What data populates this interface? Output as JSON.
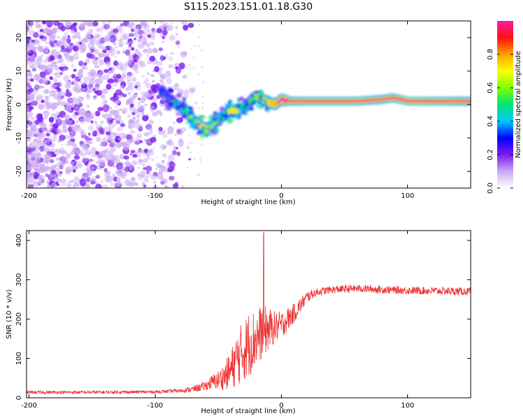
{
  "title": "S115.2023.151.01.18.G30",
  "colors": {
    "snr_line": "#ee3333",
    "spectrum_noise": "#8a2be2",
    "colorbar": [
      "#ffffff",
      "#c9a8f5",
      "#7a1cf0",
      "#0000ff",
      "#00c8ff",
      "#00e676",
      "#7fff00",
      "#ffff00",
      "#ffa000",
      "#ff1010",
      "#ff1aa8"
    ]
  },
  "chart_data": [
    {
      "type": "heatmap",
      "name": "spectrogram",
      "xlabel": "Height of straight line (km)",
      "ylabel": "Frequency (Hz)",
      "xlim": [
        -202,
        150
      ],
      "ylim": [
        -25,
        25
      ],
      "xticks": [
        {
          "value": -200,
          "label": "-200"
        },
        {
          "value": -100,
          "label": "-100"
        },
        {
          "value": 0,
          "label": "0"
        },
        {
          "value": 100,
          "label": "100"
        }
      ],
      "yticks": [
        {
          "value": 20,
          "label": "20"
        },
        {
          "value": 10,
          "label": "10"
        },
        {
          "value": 0,
          "label": "0"
        },
        {
          "value": -10,
          "label": "-10"
        },
        {
          "value": -20,
          "label": "-20"
        }
      ],
      "ridge": {
        "x": [
          -95,
          -90,
          -85,
          -80,
          -75,
          -70,
          -65,
          -60,
          -55,
          -50,
          -45,
          -40,
          -35,
          -30,
          -25,
          -20,
          -15,
          -10,
          -5,
          0,
          5,
          10,
          20,
          40,
          60,
          80,
          88,
          95,
          100,
          110,
          120,
          130,
          140,
          150
        ],
        "y": [
          4,
          2,
          0.5,
          -0.5,
          -2,
          -4.5,
          -6,
          -7.5,
          -6.5,
          -4.5,
          -3,
          -2,
          -1.5,
          -1,
          0.5,
          2.5,
          1.5,
          0.5,
          0.2,
          1.5,
          1,
          1,
          1,
          1,
          1,
          1.5,
          2,
          1.5,
          1,
          1,
          1,
          1,
          1,
          1
        ],
        "amplitude": [
          0.2,
          0.25,
          0.35,
          0.4,
          0.45,
          0.5,
          0.55,
          0.55,
          0.5,
          0.4,
          0.45,
          0.5,
          0.5,
          0.4,
          0.3,
          0.5,
          0.6,
          0.6,
          0.7,
          0.8,
          0.85,
          0.85,
          0.9,
          0.9,
          0.9,
          0.8,
          0.85,
          0.9,
          0.95,
          0.95,
          0.9,
          0.9,
          0.85,
          0.85
        ]
      },
      "noise_region_xlim": [
        -200,
        -75
      ],
      "colorbar": {
        "label": "Normalized spectral amplitude",
        "range": [
          0,
          1
        ],
        "ticks": [
          {
            "value": 0,
            "label": "0.0"
          },
          {
            "value": 0.2,
            "label": "0.2"
          },
          {
            "value": 0.4,
            "label": "0.4"
          },
          {
            "value": 0.6,
            "label": "0.6"
          },
          {
            "value": 0.8,
            "label": "0.8"
          }
        ]
      }
    },
    {
      "type": "line",
      "name": "snr",
      "xlabel": "Height of straight line (km)",
      "ylabel": "SNR (10 * v/v)",
      "xlim": [
        -202,
        150
      ],
      "ylim": [
        0,
        425
      ],
      "xticks": [
        {
          "value": -200,
          "label": "-200"
        },
        {
          "value": -100,
          "label": "-100"
        },
        {
          "value": 0,
          "label": "0"
        },
        {
          "value": 100,
          "label": "100"
        }
      ],
      "yticks": [
        {
          "value": 0,
          "label": "0"
        },
        {
          "value": 100,
          "label": "100"
        },
        {
          "value": 200,
          "label": "200"
        },
        {
          "value": 300,
          "label": "300"
        },
        {
          "value": 400,
          "label": "400"
        }
      ],
      "envelope": {
        "x": [
          -202,
          -150,
          -100,
          -80,
          -70,
          -60,
          -55,
          -50,
          -45,
          -40,
          -35,
          -30,
          -25,
          -20,
          -15,
          -10,
          -5,
          0,
          5,
          10,
          15,
          20,
          25,
          30,
          40,
          60,
          80,
          100,
          120,
          150
        ],
        "mean": [
          14,
          14,
          15,
          18,
          22,
          30,
          40,
          45,
          55,
          70,
          100,
          120,
          140,
          150,
          170,
          175,
          180,
          185,
          200,
          215,
          235,
          255,
          265,
          270,
          275,
          278,
          275,
          273,
          272,
          270
        ],
        "spread": [
          4,
          4,
          4,
          5,
          8,
          12,
          18,
          25,
          35,
          50,
          70,
          80,
          85,
          75,
          70,
          55,
          40,
          35,
          30,
          25,
          20,
          15,
          12,
          10,
          10,
          10,
          10,
          10,
          10,
          10
        ]
      },
      "spike": {
        "x": -14,
        "y": 420
      }
    }
  ]
}
